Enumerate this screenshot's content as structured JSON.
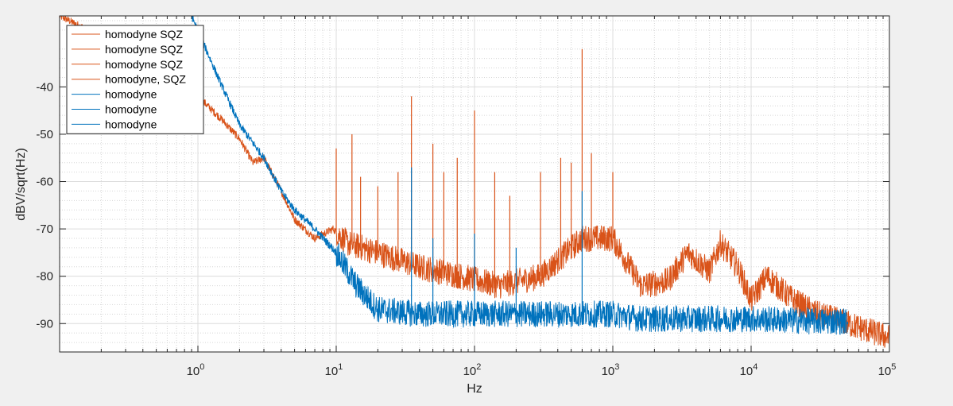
{
  "chart_data": {
    "type": "line",
    "title": "",
    "xlabel": "Hz",
    "ylabel": "dBV/sqrt(Hz)",
    "xscale": "log",
    "xlim": [
      0.1,
      100000
    ],
    "ylim": [
      -96,
      -25
    ],
    "grid": true,
    "minor_grid": true,
    "legend_position": "top-left",
    "x_ticks": [
      {
        "value": 1,
        "base": "10",
        "exp": "0"
      },
      {
        "value": 10,
        "base": "10",
        "exp": "1"
      },
      {
        "value": 100,
        "base": "10",
        "exp": "2"
      },
      {
        "value": 1000,
        "base": "10",
        "exp": "3"
      },
      {
        "value": 10000,
        "base": "10",
        "exp": "4"
      },
      {
        "value": 100000,
        "base": "10",
        "exp": "5"
      }
    ],
    "y_ticks": [
      {
        "value": -40,
        "label": "-40"
      },
      {
        "value": -50,
        "label": "-50"
      },
      {
        "value": -60,
        "label": "-60"
      },
      {
        "value": -70,
        "label": "-70"
      },
      {
        "value": -80,
        "label": "-80"
      },
      {
        "value": -90,
        "label": "-90"
      }
    ],
    "series": [
      {
        "name": "homodyne SQZ",
        "color": "#d95319",
        "points": [
          [
            0.1,
            -25
          ],
          [
            0.3,
            -32
          ],
          [
            0.6,
            -38
          ],
          [
            1.0,
            -42
          ],
          [
            1.5,
            -47
          ],
          [
            2.0,
            -51
          ],
          [
            2.5,
            -56
          ],
          [
            3.0,
            -55
          ],
          [
            4.0,
            -62
          ],
          [
            5.0,
            -68
          ],
          [
            7.0,
            -72
          ],
          [
            9.5,
            -70
          ],
          [
            12,
            -73
          ],
          [
            20,
            -75
          ],
          [
            40,
            -78
          ],
          [
            80,
            -80
          ],
          [
            150,
            -82
          ],
          [
            300,
            -80
          ],
          [
            600,
            -72
          ],
          [
            1000,
            -72
          ],
          [
            1600,
            -82
          ]
        ]
      },
      {
        "name": "homodyne SQZ",
        "color": "#d95319",
        "points": [
          [
            1600,
            -82
          ],
          [
            2500,
            -81
          ],
          [
            3500,
            -75
          ],
          [
            5000,
            -79
          ],
          [
            6000,
            -73
          ],
          [
            8000,
            -78
          ],
          [
            10000,
            -85
          ],
          [
            13000,
            -80
          ],
          [
            20000,
            -85
          ],
          [
            30000,
            -88
          ],
          [
            50000,
            -90
          ],
          [
            100000,
            -93
          ]
        ]
      },
      {
        "name": "homodyne SQZ",
        "color": "#d95319",
        "points": []
      },
      {
        "name": "homodyne, SQZ",
        "color": "#d95319",
        "points": []
      },
      {
        "name": "homodyne",
        "color": "#0072bd",
        "points": [
          [
            0.9,
            -25
          ],
          [
            1.4,
            -38
          ],
          [
            2.0,
            -48
          ],
          [
            3.0,
            -55
          ],
          [
            4.0,
            -62
          ],
          [
            5.0,
            -66
          ],
          [
            7.0,
            -70
          ],
          [
            10,
            -75
          ],
          [
            14,
            -82
          ],
          [
            20,
            -87
          ],
          [
            40,
            -88
          ],
          [
            100,
            -88
          ],
          [
            300,
            -88
          ],
          [
            1000,
            -88
          ],
          [
            1600,
            -89
          ]
        ]
      },
      {
        "name": "homodyne",
        "color": "#0072bd",
        "points": [
          [
            1600,
            -89
          ],
          [
            5000,
            -89
          ],
          [
            10000,
            -89
          ],
          [
            30000,
            -89.5
          ],
          [
            50000,
            -89.5
          ]
        ]
      },
      {
        "name": "homodyne",
        "color": "#0072bd",
        "points": []
      }
    ],
    "peaks": [
      {
        "series": 0,
        "x": 10,
        "y": -53
      },
      {
        "series": 0,
        "x": 13,
        "y": -50
      },
      {
        "series": 0,
        "x": 15,
        "y": -59
      },
      {
        "series": 0,
        "x": 20,
        "y": -61
      },
      {
        "series": 0,
        "x": 28,
        "y": -58
      },
      {
        "series": 0,
        "x": 35,
        "y": -42
      },
      {
        "series": 0,
        "x": 50,
        "y": -52
      },
      {
        "series": 0,
        "x": 60,
        "y": -58
      },
      {
        "series": 0,
        "x": 75,
        "y": -55
      },
      {
        "series": 0,
        "x": 100,
        "y": -45
      },
      {
        "series": 0,
        "x": 140,
        "y": -58
      },
      {
        "series": 0,
        "x": 180,
        "y": -63
      },
      {
        "series": 0,
        "x": 300,
        "y": -58
      },
      {
        "series": 0,
        "x": 420,
        "y": -55
      },
      {
        "series": 0,
        "x": 500,
        "y": -56
      },
      {
        "series": 0,
        "x": 600,
        "y": -32
      },
      {
        "series": 0,
        "x": 700,
        "y": -54
      },
      {
        "series": 0,
        "x": 1000,
        "y": -58
      },
      {
        "series": 4,
        "x": 35,
        "y": -57
      },
      {
        "series": 4,
        "x": 50,
        "y": -72
      },
      {
        "series": 4,
        "x": 100,
        "y": -71
      },
      {
        "series": 4,
        "x": 200,
        "y": -74
      },
      {
        "series": 4,
        "x": 600,
        "y": -62
      }
    ]
  }
}
